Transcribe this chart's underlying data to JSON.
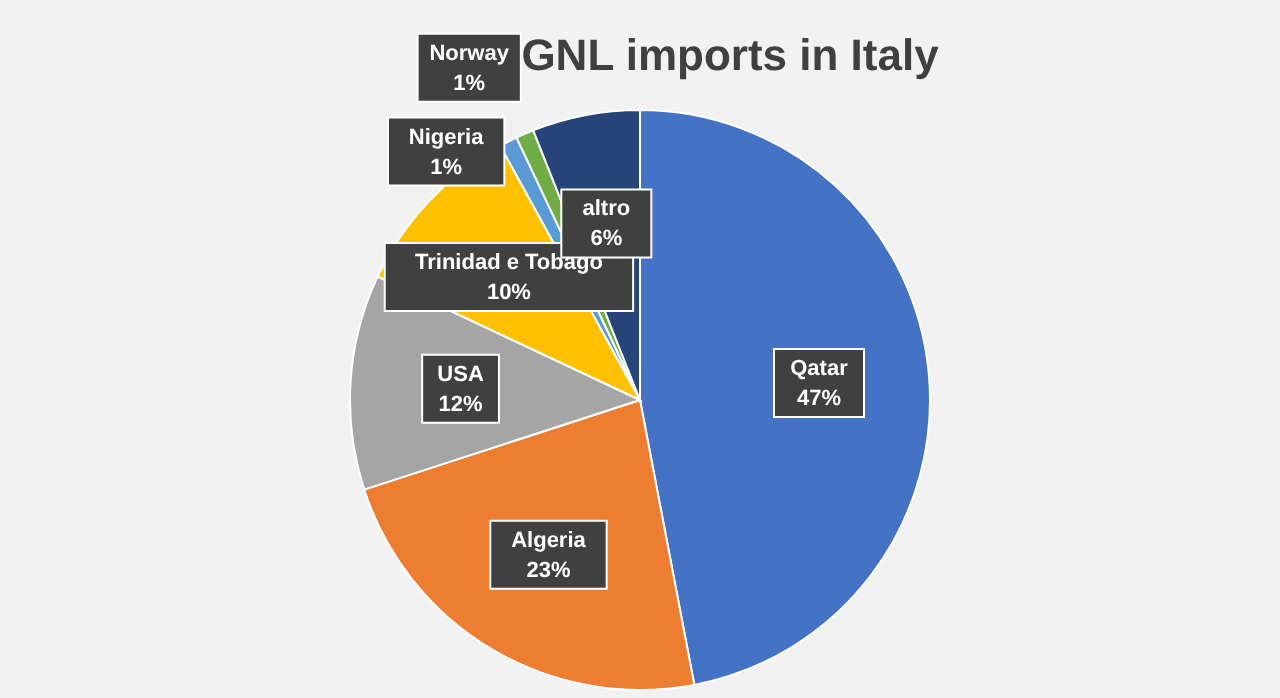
{
  "chart_data": {
    "type": "pie",
    "title": "GNL imports in Italy",
    "categories": [
      "Qatar",
      "Algeria",
      "USA",
      "Trinidad e Tobago",
      "Nigeria",
      "Norway",
      "altro"
    ],
    "values": [
      47,
      23,
      12,
      10,
      1,
      1,
      6
    ],
    "colors": [
      "#4472c4",
      "#ed7d31",
      "#a5a5a5",
      "#ffc000",
      "#5b9bd5",
      "#70ad47",
      "#264478"
    ],
    "value_labels": [
      "47%",
      "23%",
      "12%",
      "10%",
      "1%",
      "1%",
      "6%"
    ],
    "data_labels": true,
    "legend": false
  }
}
